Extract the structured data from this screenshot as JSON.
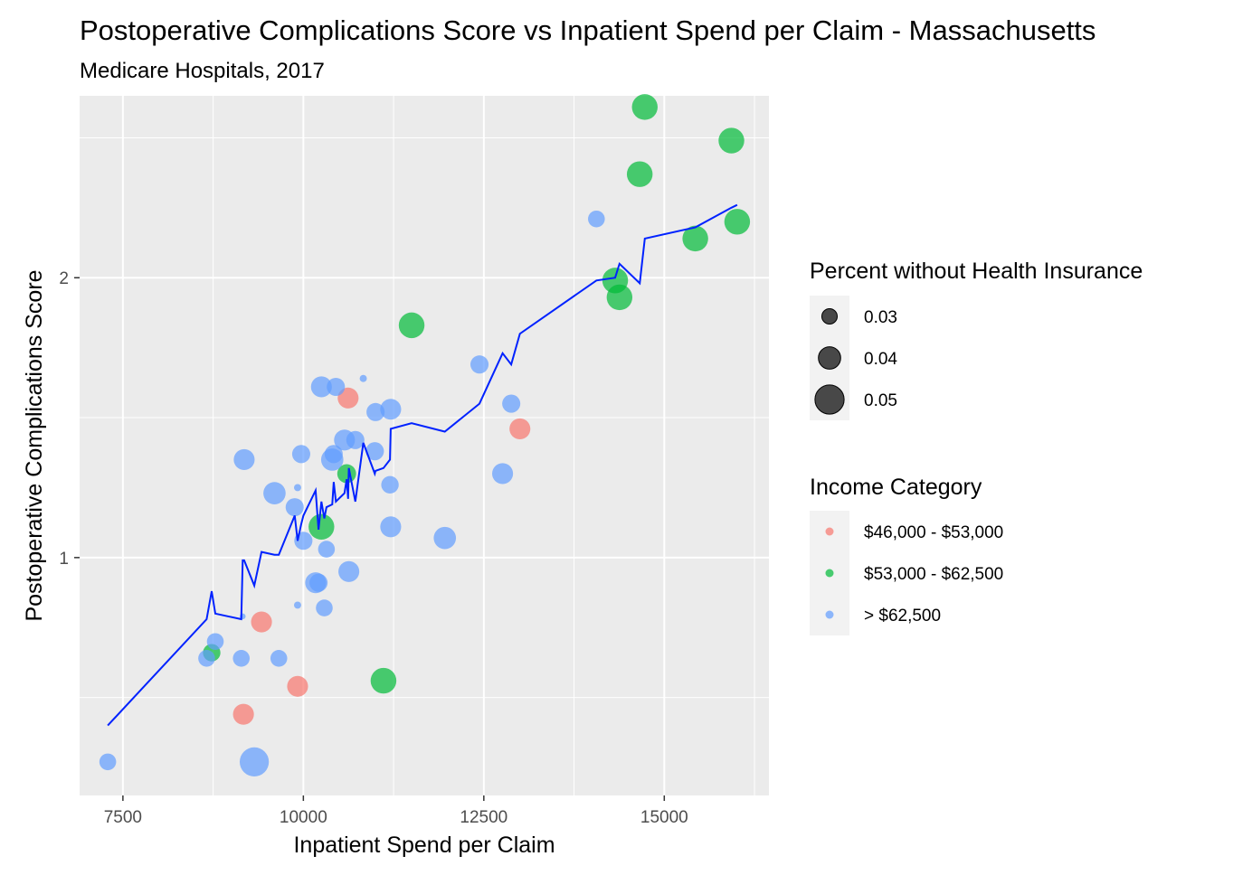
{
  "chart_data": {
    "type": "scatter",
    "title": "Postoperative Complications Score vs Inpatient Spend per Claim - Massachusetts",
    "subtitle": "Medicare Hospitals, 2017",
    "xlabel": "Inpatient Spend per Claim",
    "ylabel": "Postoperative Complications Score",
    "xlim": [
      6900,
      16450
    ],
    "ylim": [
      0.15,
      2.65
    ],
    "x_ticks": [
      7500,
      10000,
      12500,
      15000
    ],
    "x_tick_labels": [
      "7500",
      "10000",
      "12500",
      "15000"
    ],
    "y_ticks": [
      1,
      2
    ],
    "y_tick_labels": [
      "1",
      "2"
    ],
    "grid": true,
    "background": "#ebebeb",
    "size_legend": {
      "title": "Percent without Health Insurance",
      "entries": [
        {
          "label": "0.03",
          "value": 0.03
        },
        {
          "label": "0.04",
          "value": 0.04
        },
        {
          "label": "0.05",
          "value": 0.05
        }
      ]
    },
    "color_legend": {
      "title": "Income Category",
      "entries": [
        {
          "label": "$46,000 - $53,000",
          "color": "#f8766d"
        },
        {
          "label": "$53,000 - $62,500",
          "color": "#00ba38"
        },
        {
          "label": "> $62,500",
          "color": "#619cff"
        }
      ]
    },
    "legend_position": "right",
    "line_color": "#0022ff",
    "points": [
      {
        "x": 14730,
        "y": 2.61,
        "group": 1,
        "size": 0.045
      },
      {
        "x": 15930,
        "y": 2.49,
        "group": 1,
        "size": 0.045
      },
      {
        "x": 14660,
        "y": 2.37,
        "group": 1,
        "size": 0.045
      },
      {
        "x": 16010,
        "y": 2.2,
        "group": 1,
        "size": 0.045
      },
      {
        "x": 15430,
        "y": 2.14,
        "group": 1,
        "size": 0.045
      },
      {
        "x": 14320,
        "y": 1.99,
        "group": 1,
        "size": 0.045
      },
      {
        "x": 14380,
        "y": 1.93,
        "group": 1,
        "size": 0.045
      },
      {
        "x": 11500,
        "y": 1.83,
        "group": 1,
        "size": 0.045
      },
      {
        "x": 10250,
        "y": 1.11,
        "group": 1,
        "size": 0.045
      },
      {
        "x": 10600,
        "y": 1.3,
        "group": 1,
        "size": 0.035
      },
      {
        "x": 8730,
        "y": 0.66,
        "group": 1,
        "size": 0.033
      },
      {
        "x": 11110,
        "y": 0.56,
        "group": 1,
        "size": 0.045
      },
      {
        "x": 10620,
        "y": 1.57,
        "group": 0,
        "size": 0.038
      },
      {
        "x": 13000,
        "y": 1.46,
        "group": 0,
        "size": 0.038
      },
      {
        "x": 9420,
        "y": 0.77,
        "group": 0,
        "size": 0.038
      },
      {
        "x": 9920,
        "y": 0.54,
        "group": 0,
        "size": 0.038
      },
      {
        "x": 9170,
        "y": 0.44,
        "group": 0,
        "size": 0.038
      },
      {
        "x": 14060,
        "y": 2.21,
        "group": 2,
        "size": 0.032
      },
      {
        "x": 12440,
        "y": 1.69,
        "group": 2,
        "size": 0.034
      },
      {
        "x": 12880,
        "y": 1.55,
        "group": 2,
        "size": 0.034
      },
      {
        "x": 12760,
        "y": 1.3,
        "group": 2,
        "size": 0.038
      },
      {
        "x": 11960,
        "y": 1.07,
        "group": 2,
        "size": 0.04
      },
      {
        "x": 10250,
        "y": 1.61,
        "group": 2,
        "size": 0.038
      },
      {
        "x": 10450,
        "y": 1.61,
        "group": 2,
        "size": 0.034
      },
      {
        "x": 10830,
        "y": 1.64,
        "group": 2,
        "size": 0.018
      },
      {
        "x": 11000,
        "y": 1.52,
        "group": 2,
        "size": 0.034
      },
      {
        "x": 11210,
        "y": 1.53,
        "group": 2,
        "size": 0.038
      },
      {
        "x": 10570,
        "y": 1.42,
        "group": 2,
        "size": 0.038
      },
      {
        "x": 10720,
        "y": 1.42,
        "group": 2,
        "size": 0.034
      },
      {
        "x": 9970,
        "y": 1.37,
        "group": 2,
        "size": 0.034
      },
      {
        "x": 10400,
        "y": 1.35,
        "group": 2,
        "size": 0.04
      },
      {
        "x": 10420,
        "y": 1.37,
        "group": 2,
        "size": 0.034
      },
      {
        "x": 10990,
        "y": 1.38,
        "group": 2,
        "size": 0.034
      },
      {
        "x": 9180,
        "y": 1.35,
        "group": 2,
        "size": 0.038
      },
      {
        "x": 11200,
        "y": 1.26,
        "group": 2,
        "size": 0.033
      },
      {
        "x": 9600,
        "y": 1.23,
        "group": 2,
        "size": 0.04
      },
      {
        "x": 9920,
        "y": 1.25,
        "group": 2,
        "size": 0.018
      },
      {
        "x": 9880,
        "y": 1.18,
        "group": 2,
        "size": 0.034
      },
      {
        "x": 10000,
        "y": 1.06,
        "group": 2,
        "size": 0.034
      },
      {
        "x": 11210,
        "y": 1.11,
        "group": 2,
        "size": 0.038
      },
      {
        "x": 10320,
        "y": 1.03,
        "group": 2,
        "size": 0.032
      },
      {
        "x": 10630,
        "y": 0.95,
        "group": 2,
        "size": 0.038
      },
      {
        "x": 10170,
        "y": 0.91,
        "group": 2,
        "size": 0.038
      },
      {
        "x": 10210,
        "y": 0.91,
        "group": 2,
        "size": 0.034
      },
      {
        "x": 9920,
        "y": 0.83,
        "group": 2,
        "size": 0.018
      },
      {
        "x": 10290,
        "y": 0.82,
        "group": 2,
        "size": 0.032
      },
      {
        "x": 9160,
        "y": 0.79,
        "group": 2,
        "size": 0.016
      },
      {
        "x": 8780,
        "y": 0.7,
        "group": 2,
        "size": 0.032
      },
      {
        "x": 8660,
        "y": 0.64,
        "group": 2,
        "size": 0.032
      },
      {
        "x": 9140,
        "y": 0.64,
        "group": 2,
        "size": 0.032
      },
      {
        "x": 9660,
        "y": 0.64,
        "group": 2,
        "size": 0.032
      },
      {
        "x": 7290,
        "y": 0.27,
        "group": 2,
        "size": 0.032
      },
      {
        "x": 9320,
        "y": 0.27,
        "group": 2,
        "size": 0.05
      }
    ],
    "trend_line": [
      [
        7290,
        0.4
      ],
      [
        8660,
        0.78
      ],
      [
        8730,
        0.88
      ],
      [
        8780,
        0.8
      ],
      [
        9140,
        0.78
      ],
      [
        9160,
        0.99
      ],
      [
        9180,
        0.99
      ],
      [
        9320,
        0.9
      ],
      [
        9420,
        1.02
      ],
      [
        9600,
        1.01
      ],
      [
        9660,
        1.01
      ],
      [
        9880,
        1.15
      ],
      [
        9920,
        1.06
      ],
      [
        9970,
        1.12
      ],
      [
        10000,
        1.15
      ],
      [
        10170,
        1.24
      ],
      [
        10210,
        1.1
      ],
      [
        10250,
        1.2
      ],
      [
        10290,
        1.14
      ],
      [
        10320,
        1.18
      ],
      [
        10400,
        1.19
      ],
      [
        10420,
        1.27
      ],
      [
        10450,
        1.2
      ],
      [
        10570,
        1.23
      ],
      [
        10600,
        1.28
      ],
      [
        10620,
        1.21
      ],
      [
        10630,
        1.32
      ],
      [
        10720,
        1.2
      ],
      [
        10830,
        1.41
      ],
      [
        10990,
        1.3
      ],
      [
        11000,
        1.31
      ],
      [
        11110,
        1.32
      ],
      [
        11200,
        1.35
      ],
      [
        11210,
        1.46
      ],
      [
        11500,
        1.48
      ],
      [
        11960,
        1.45
      ],
      [
        12440,
        1.55
      ],
      [
        12760,
        1.73
      ],
      [
        12880,
        1.69
      ],
      [
        13000,
        1.8
      ],
      [
        14060,
        1.99
      ],
      [
        14320,
        2.0
      ],
      [
        14380,
        2.05
      ],
      [
        14660,
        1.98
      ],
      [
        14730,
        2.14
      ],
      [
        15430,
        2.18
      ],
      [
        15930,
        2.25
      ],
      [
        16010,
        2.26
      ]
    ]
  }
}
